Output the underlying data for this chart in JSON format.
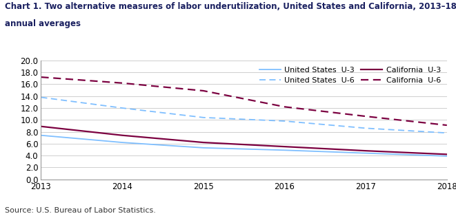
{
  "title_line1": "Chart 1. Two alternative measures of labor underutilization, United States and California, 2013–18",
  "title_line2": "annual averages",
  "source": "Source: U.S. Bureau of Labor Statistics.",
  "years": [
    2013,
    2014,
    2015,
    2016,
    2017,
    2018
  ],
  "us_u3": [
    7.4,
    6.2,
    5.3,
    4.9,
    4.4,
    3.9
  ],
  "us_u6": [
    13.8,
    12.0,
    10.4,
    9.8,
    8.6,
    7.8
  ],
  "ca_u3": [
    8.9,
    7.4,
    6.2,
    5.5,
    4.8,
    4.2
  ],
  "ca_u6": [
    17.2,
    16.2,
    14.9,
    12.2,
    10.6,
    9.1
  ],
  "us_color": "#7fbfff",
  "ca_color": "#7b0040",
  "ylim": [
    0.0,
    20.0
  ],
  "yticks": [
    0.0,
    2.0,
    4.0,
    6.0,
    8.0,
    10.0,
    12.0,
    14.0,
    16.0,
    18.0,
    20.0
  ],
  "xticks": [
    2013,
    2014,
    2015,
    2016,
    2017,
    2018
  ],
  "legend_us_u3": "United States  U-3",
  "legend_us_u6": "United States  U-6",
  "legend_ca_u3": "California  U-3",
  "legend_ca_u6": "California  U-6",
  "title_fontsize": 8.5,
  "source_fontsize": 8.0,
  "tick_fontsize": 8.5,
  "legend_fontsize": 8.0,
  "grid_color": "#c8c8c8",
  "title_color": "#1a2060",
  "background_color": "#ffffff",
  "plot_bg_color": "#ffffff"
}
